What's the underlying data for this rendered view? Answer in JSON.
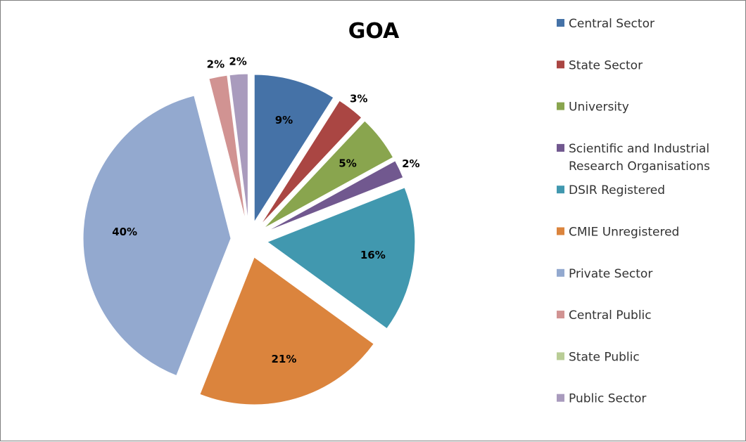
{
  "chart_data": {
    "type": "pie",
    "title": "GOA",
    "legend_position": "right",
    "exploded": true,
    "slices": [
      {
        "name": "Central Sector",
        "value": 9,
        "label": "9%",
        "color": "#4572A7"
      },
      {
        "name": "State Sector",
        "value": 3,
        "label": "3%",
        "color": "#AA4643"
      },
      {
        "name": "University",
        "value": 5,
        "label": "5%",
        "color": "#89A54E"
      },
      {
        "name": "Scientific and Industrial Research Organisations",
        "value": 2,
        "label": "2%",
        "color": "#71588F"
      },
      {
        "name": "DSIR Registered",
        "value": 16,
        "label": "16%",
        "color": "#4198AF"
      },
      {
        "name": "CMIE Unregistered",
        "value": 21,
        "label": "21%",
        "color": "#DB843D"
      },
      {
        "name": "Private Sector",
        "value": 40,
        "label": "40%",
        "color": "#93A9CF"
      },
      {
        "name": "Central Public",
        "value": 2,
        "label": "2%",
        "color": "#D19392"
      },
      {
        "name": "State Public",
        "value": 0,
        "label": "",
        "color": "#B9CD96"
      },
      {
        "name": "Public Sector",
        "value": 2,
        "label": "2%",
        "color": "#A99BBD"
      }
    ]
  }
}
